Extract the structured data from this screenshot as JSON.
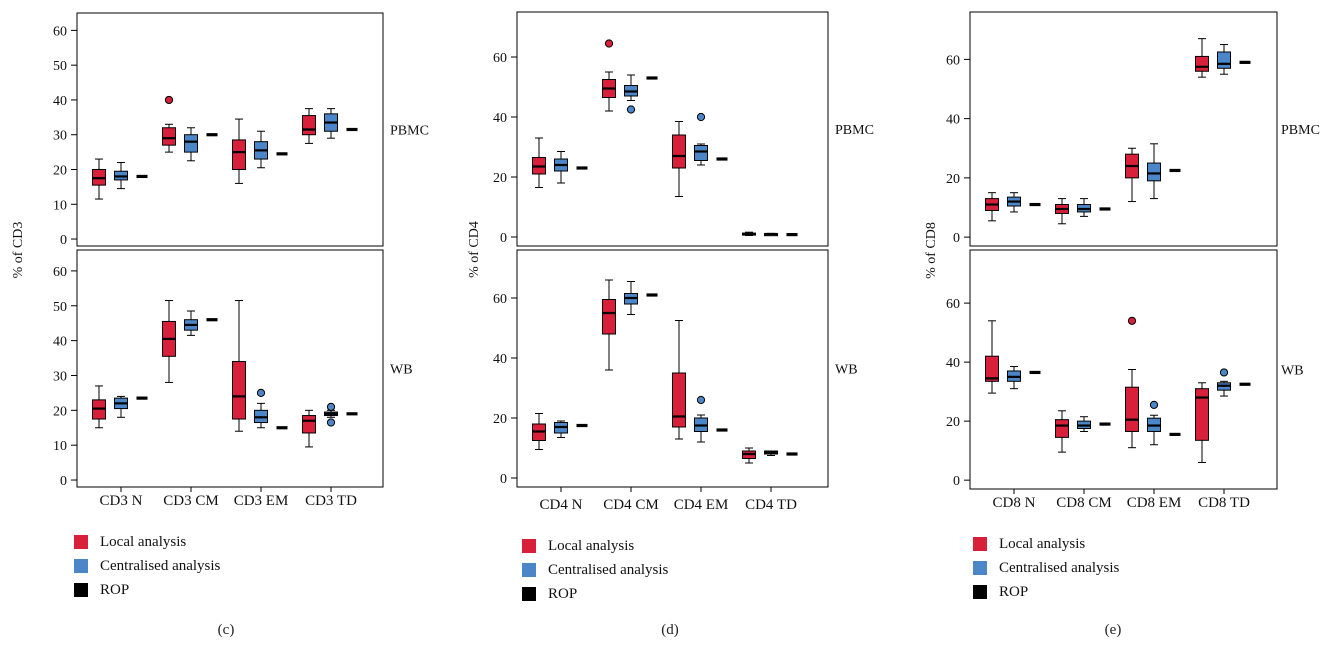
{
  "colors": {
    "local": "#d8203b",
    "central": "#4a86c8",
    "rop": "#000000"
  },
  "legend": [
    {
      "label": "Local analysis",
      "color": "#d8203b"
    },
    {
      "label": "Centralised analysis",
      "color": "#4a86c8"
    },
    {
      "label": "ROP",
      "color": "#000000"
    }
  ],
  "chart_data": [
    {
      "type": "box",
      "panel": "(c)",
      "ylabel": "% of CD3",
      "categories": [
        "CD3 N",
        "CD3 CM",
        "CD3 EM",
        "CD3 TD"
      ],
      "rows": [
        {
          "label": "PBMC",
          "ylim": [
            -2,
            65
          ],
          "yticks": [
            0,
            10,
            20,
            30,
            40,
            50,
            60
          ],
          "series": [
            {
              "name": "Local analysis",
              "boxes": [
                {
                  "whislo": 11.5,
                  "q1": 15.5,
                  "med": 17.5,
                  "q3": 20,
                  "whishi": 23,
                  "fliers": []
                },
                {
                  "whislo": 25,
                  "q1": 27,
                  "med": 29,
                  "q3": 32,
                  "whishi": 33,
                  "fliers": [
                    40
                  ]
                },
                {
                  "whislo": 16,
                  "q1": 20,
                  "med": 25,
                  "q3": 28.5,
                  "whishi": 34.5,
                  "fliers": []
                },
                {
                  "whislo": 27.5,
                  "q1": 30,
                  "med": 31.5,
                  "q3": 35.5,
                  "whishi": 37.5,
                  "fliers": []
                }
              ]
            },
            {
              "name": "Centralised analysis",
              "boxes": [
                {
                  "whislo": 14.5,
                  "q1": 17,
                  "med": 18,
                  "q3": 19.5,
                  "whishi": 22,
                  "fliers": []
                },
                {
                  "whislo": 22.5,
                  "q1": 25,
                  "med": 28,
                  "q3": 30,
                  "whishi": 32,
                  "fliers": []
                },
                {
                  "whislo": 20.5,
                  "q1": 23,
                  "med": 25.5,
                  "q3": 28,
                  "whishi": 31,
                  "fliers": []
                },
                {
                  "whislo": 29,
                  "q1": 31,
                  "med": 33.5,
                  "q3": 36,
                  "whishi": 37.5,
                  "fliers": []
                }
              ]
            },
            {
              "name": "ROP",
              "values": [
                18,
                30,
                24.5,
                31.5
              ]
            }
          ]
        },
        {
          "label": "WB",
          "ylim": [
            -2,
            66
          ],
          "yticks": [
            0,
            10,
            20,
            30,
            40,
            50,
            60
          ],
          "series": [
            {
              "name": "Local analysis",
              "boxes": [
                {
                  "whislo": 15,
                  "q1": 17.5,
                  "med": 20.5,
                  "q3": 23,
                  "whishi": 27,
                  "fliers": []
                },
                {
                  "whislo": 28,
                  "q1": 35.5,
                  "med": 40.5,
                  "q3": 45.5,
                  "whishi": 51.5,
                  "fliers": []
                },
                {
                  "whislo": 14,
                  "q1": 17.5,
                  "med": 24,
                  "q3": 34,
                  "whishi": 51.5,
                  "fliers": []
                },
                {
                  "whislo": 9.5,
                  "q1": 13.5,
                  "med": 17,
                  "q3": 18.5,
                  "whishi": 20,
                  "fliers": []
                }
              ]
            },
            {
              "name": "Centralised analysis",
              "boxes": [
                {
                  "whislo": 18,
                  "q1": 20.5,
                  "med": 22,
                  "q3": 23.5,
                  "whishi": 24,
                  "fliers": []
                },
                {
                  "whislo": 41.5,
                  "q1": 43,
                  "med": 44.5,
                  "q3": 46,
                  "whishi": 48.5,
                  "fliers": []
                },
                {
                  "whislo": 15,
                  "q1": 16.5,
                  "med": 18,
                  "q3": 20,
                  "whishi": 22,
                  "fliers": [
                    25
                  ]
                },
                {
                  "whislo": 18,
                  "q1": 18.5,
                  "med": 19,
                  "q3": 19.5,
                  "whishi": 20,
                  "fliers": [
                    21,
                    16.5
                  ]
                }
              ]
            },
            {
              "name": "ROP",
              "values": [
                23.5,
                46,
                15,
                19
              ]
            }
          ]
        }
      ]
    },
    {
      "type": "box",
      "panel": "(d)",
      "ylabel": "% of CD4",
      "categories": [
        "CD4 N",
        "CD4 CM",
        "CD4 EM",
        "CD4 TD"
      ],
      "rows": [
        {
          "label": "PBMC",
          "ylim": [
            -3,
            75
          ],
          "yticks": [
            0,
            20,
            40,
            60
          ],
          "series": [
            {
              "name": "Local analysis",
              "boxes": [
                {
                  "whislo": 16.5,
                  "q1": 21,
                  "med": 23.5,
                  "q3": 26.5,
                  "whishi": 33,
                  "fliers": []
                },
                {
                  "whislo": 42,
                  "q1": 46.5,
                  "med": 49.5,
                  "q3": 52.5,
                  "whishi": 55,
                  "fliers": [
                    64.5
                  ]
                },
                {
                  "whislo": 13.5,
                  "q1": 23,
                  "med": 27,
                  "q3": 34,
                  "whishi": 38.5,
                  "fliers": []
                },
                {
                  "whislo": 0.5,
                  "q1": 0.8,
                  "med": 1,
                  "q3": 1.3,
                  "whishi": 1.6,
                  "fliers": []
                }
              ]
            },
            {
              "name": "Centralised analysis",
              "boxes": [
                {
                  "whislo": 18,
                  "q1": 22,
                  "med": 24,
                  "q3": 26,
                  "whishi": 28.5,
                  "fliers": []
                },
                {
                  "whislo": 45.5,
                  "q1": 47,
                  "med": 48.5,
                  "q3": 50.5,
                  "whishi": 54,
                  "fliers": [
                    42.5
                  ]
                },
                {
                  "whislo": 24,
                  "q1": 25.5,
                  "med": 28.5,
                  "q3": 30.5,
                  "whishi": 31,
                  "fliers": [
                    40
                  ]
                },
                {
                  "whislo": 0.8,
                  "q1": 0.9,
                  "med": 1,
                  "q3": 1.1,
                  "whishi": 1.2,
                  "fliers": []
                }
              ]
            },
            {
              "name": "ROP",
              "values": [
                23,
                53,
                26,
                0.8
              ]
            }
          ]
        },
        {
          "label": "WB",
          "ylim": [
            -3,
            76
          ],
          "yticks": [
            0,
            20,
            40,
            60
          ],
          "series": [
            {
              "name": "Local analysis",
              "boxes": [
                {
                  "whislo": 9.5,
                  "q1": 12.5,
                  "med": 15.5,
                  "q3": 18,
                  "whishi": 21.5,
                  "fliers": []
                },
                {
                  "whislo": 36,
                  "q1": 48,
                  "med": 55,
                  "q3": 59.5,
                  "whishi": 66,
                  "fliers": []
                },
                {
                  "whislo": 13,
                  "q1": 17,
                  "med": 20.5,
                  "q3": 35,
                  "whishi": 52.5,
                  "fliers": []
                },
                {
                  "whislo": 5,
                  "q1": 6.5,
                  "med": 8,
                  "q3": 9,
                  "whishi": 10,
                  "fliers": []
                }
              ]
            },
            {
              "name": "Centralised analysis",
              "boxes": [
                {
                  "whislo": 13.5,
                  "q1": 15,
                  "med": 17,
                  "q3": 18.5,
                  "whishi": 19,
                  "fliers": []
                },
                {
                  "whislo": 54.5,
                  "q1": 58,
                  "med": 60,
                  "q3": 61.5,
                  "whishi": 65.5,
                  "fliers": []
                },
                {
                  "whislo": 12,
                  "q1": 15.5,
                  "med": 17.5,
                  "q3": 20,
                  "whishi": 21,
                  "fliers": [
                    26
                  ]
                },
                {
                  "whislo": 7.5,
                  "q1": 8,
                  "med": 8.5,
                  "q3": 9,
                  "whishi": 9,
                  "fliers": []
                }
              ]
            },
            {
              "name": "ROP",
              "values": [
                17.5,
                61,
                16,
                8
              ]
            }
          ]
        }
      ]
    },
    {
      "type": "box",
      "panel": "(e)",
      "ylabel": "% of CD8",
      "categories": [
        "CD8 N",
        "CD8 CM",
        "CD8 EM",
        "CD8 TD"
      ],
      "rows": [
        {
          "label": "PBMC",
          "ylim": [
            -3,
            76
          ],
          "yticks": [
            0,
            20,
            40,
            60
          ],
          "series": [
            {
              "name": "Local analysis",
              "boxes": [
                {
                  "whislo": 5.5,
                  "q1": 9,
                  "med": 11,
                  "q3": 13,
                  "whishi": 15,
                  "fliers": []
                },
                {
                  "whislo": 4.5,
                  "q1": 8,
                  "med": 9.5,
                  "q3": 11,
                  "whishi": 13,
                  "fliers": []
                },
                {
                  "whislo": 12,
                  "q1": 20,
                  "med": 24,
                  "q3": 28,
                  "whishi": 30,
                  "fliers": []
                },
                {
                  "whislo": 54,
                  "q1": 56,
                  "med": 57.5,
                  "q3": 61,
                  "whishi": 67,
                  "fliers": []
                }
              ]
            },
            {
              "name": "Centralised analysis",
              "boxes": [
                {
                  "whislo": 8.5,
                  "q1": 10.5,
                  "med": 12,
                  "q3": 13.5,
                  "whishi": 15,
                  "fliers": []
                },
                {
                  "whislo": 7,
                  "q1": 8.5,
                  "med": 9.5,
                  "q3": 11,
                  "whishi": 13,
                  "fliers": []
                },
                {
                  "whislo": 13,
                  "q1": 19,
                  "med": 21.5,
                  "q3": 25,
                  "whishi": 31.5,
                  "fliers": []
                },
                {
                  "whislo": 55,
                  "q1": 57,
                  "med": 58.5,
                  "q3": 62.5,
                  "whishi": 65,
                  "fliers": []
                }
              ]
            },
            {
              "name": "ROP",
              "values": [
                11,
                9.5,
                22.5,
                59
              ]
            }
          ]
        },
        {
          "label": "WB",
          "ylim": [
            -3,
            78
          ],
          "yticks": [
            0,
            20,
            40,
            60
          ],
          "series": [
            {
              "name": "Local analysis",
              "boxes": [
                {
                  "whislo": 29.5,
                  "q1": 33.5,
                  "med": 34.5,
                  "q3": 42,
                  "whishi": 54,
                  "fliers": []
                },
                {
                  "whislo": 9.5,
                  "q1": 14.5,
                  "med": 18.5,
                  "q3": 20.5,
                  "whishi": 23.5,
                  "fliers": []
                },
                {
                  "whislo": 11,
                  "q1": 16.5,
                  "med": 20.5,
                  "q3": 31.5,
                  "whishi": 37.5,
                  "fliers": [
                    54
                  ]
                },
                {
                  "whislo": 6,
                  "q1": 13.5,
                  "med": 28,
                  "q3": 31,
                  "whishi": 33,
                  "fliers": []
                }
              ]
            },
            {
              "name": "Centralised analysis",
              "boxes": [
                {
                  "whislo": 31,
                  "q1": 33.5,
                  "med": 35,
                  "q3": 37,
                  "whishi": 38.5,
                  "fliers": []
                },
                {
                  "whislo": 16.5,
                  "q1": 17.5,
                  "med": 18.5,
                  "q3": 20,
                  "whishi": 21.5,
                  "fliers": []
                },
                {
                  "whislo": 12,
                  "q1": 16.5,
                  "med": 18.5,
                  "q3": 21,
                  "whishi": 22,
                  "fliers": [
                    25.5
                  ]
                },
                {
                  "whislo": 28.5,
                  "q1": 30.5,
                  "med": 32,
                  "q3": 33,
                  "whishi": 33.5,
                  "fliers": [
                    36.5
                  ]
                }
              ]
            },
            {
              "name": "ROP",
              "values": [
                36.5,
                19,
                15.5,
                32.5
              ]
            }
          ]
        }
      ]
    }
  ]
}
